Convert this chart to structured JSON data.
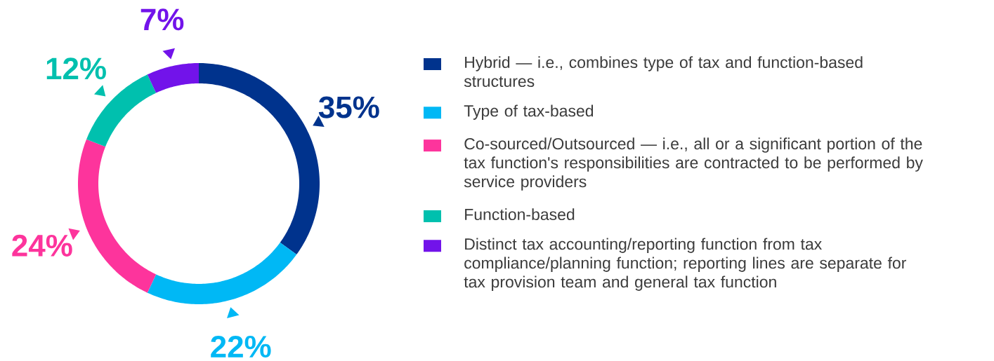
{
  "chart_data": {
    "type": "donut",
    "categories": [
      "Hybrid — i.e., combines type of tax and function-based structures",
      "Type of tax-based",
      "Co-sourced/Outsourced — i.e., all or a significant portion of the tax function's responsibilities are contracted to be performed by service providers",
      "Function-based",
      "Distinct tax accounting/reporting function from tax compliance/planning function; reporting lines are separate for tax provision team and general tax function"
    ],
    "values": [
      35,
      22,
      24,
      12,
      7
    ],
    "colors": [
      "#00338d",
      "#00b8f5",
      "#fd349c",
      "#00c0ae",
      "#7213ea"
    ],
    "value_labels": [
      "35%",
      "22%",
      "24%",
      "12%",
      "7%"
    ],
    "legend": "right"
  }
}
